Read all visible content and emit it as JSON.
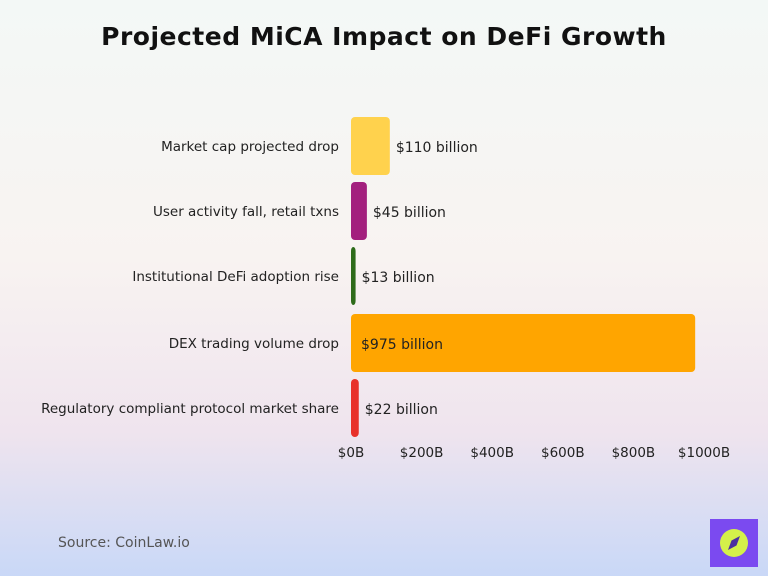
{
  "chart_data": {
    "type": "bar",
    "orientation": "horizontal",
    "title": "Projected MiCA Impact on DeFi Growth",
    "categories": [
      "Market cap projected drop",
      "User activity fall, retail txns",
      "Institutional DeFi adoption rise",
      "DEX trading volume drop",
      "Regulatory compliant protocol market share"
    ],
    "values": [
      110,
      45,
      13,
      975,
      22
    ],
    "value_labels": [
      "$110 billion",
      "$45 billion",
      "$13 billion",
      "$975 billion",
      "$22 billion"
    ],
    "colors": [
      "#ffd24d",
      "#a3207e",
      "#2e6b1a",
      "#ffa500",
      "#e8312a"
    ],
    "xlim": [
      0,
      1000
    ],
    "xticks": [
      0,
      200,
      400,
      600,
      800,
      1000
    ],
    "xtick_labels": [
      "$0B",
      "$200B",
      "$400B",
      "$600B",
      "$800B",
      "$1000B"
    ],
    "xlabel": "",
    "ylabel": "",
    "grid": false
  },
  "footer": {
    "source": "Source: CoinLaw.io",
    "logo_icon": "compass-icon",
    "logo_color": "#7b4af0"
  }
}
